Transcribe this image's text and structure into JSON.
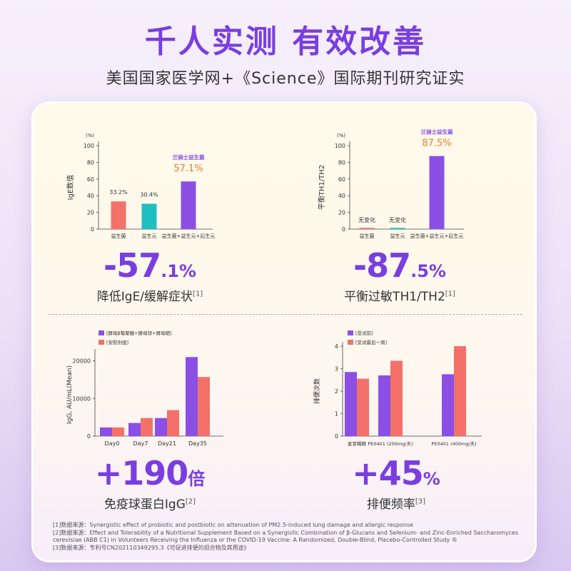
{
  "header": {
    "title": "千人实测 有效改善",
    "subtitle": "美国国家医学网+《Science》国际期刊研究证实"
  },
  "colors": {
    "purple": "#8b4fe6",
    "salmon": "#f47169",
    "teal": "#1fbfbf",
    "orange": "#f47a2a",
    "title_purple": "#7a3ee0"
  },
  "stats": [
    {
      "big": "-57",
      "small": ".1%",
      "caption": "降低IgE/缓解症状",
      "ref": "[1]"
    },
    {
      "big": "-87",
      "small": ".5%",
      "caption": "平衡过敏TH1/TH2",
      "ref": "[1]"
    },
    {
      "big": "+190",
      "small": "倍",
      "caption": "免疫球蛋白IgG",
      "ref": "[2]"
    },
    {
      "big": "+45",
      "small": "%",
      "caption": "排便频率",
      "ref": "[3]"
    }
  ],
  "chart_data": [
    {
      "type": "bar",
      "title": "",
      "ylabel": "IgE数值",
      "unit_label": "(%)",
      "ylim": [
        0,
        100
      ],
      "yticks": [
        0,
        20,
        40,
        60,
        80,
        100
      ],
      "categories": [
        "益生菌",
        "益生元",
        "益生菌+益生元+后生元"
      ],
      "values": [
        33.2,
        30.4,
        57.1
      ],
      "data_labels": [
        "33.2%",
        "30.4%",
        "57.1%"
      ],
      "annotation": "兰骑士益生菌",
      "bar_colors": [
        "#f47169",
        "#1fbfbf",
        "#8b4fe6"
      ]
    },
    {
      "type": "bar",
      "title": "",
      "ylabel": "平衡TH1/TH2",
      "unit_label": "(%)",
      "ylim": [
        0,
        100
      ],
      "yticks": [
        0,
        20,
        40,
        60,
        80,
        100
      ],
      "categories": [
        "益生菌",
        "益生元",
        "益生菌+益生元+后生元"
      ],
      "values": [
        1.5,
        1.5,
        87.5
      ],
      "data_labels": [
        "无变化",
        "无变化",
        "87.5%"
      ],
      "annotation": "兰骑士益生菌",
      "bar_colors": [
        "#f47169",
        "#1fbfbf",
        "#8b4fe6"
      ]
    },
    {
      "type": "bar",
      "title": "",
      "ylabel": "IgG, AU/mL(Mean)",
      "ylim": [
        0,
        22000
      ],
      "yticks": [
        0,
        10000,
        20000
      ],
      "categories": [
        "Day0",
        "Day7",
        "Day21",
        "Day35"
      ],
      "series": [
        {
          "name": "[酵母β葡聚糖+酵母锌+酵母硒]",
          "values": [
            2300,
            3500,
            4800,
            21000
          ],
          "color": "#8b4fe6"
        },
        {
          "name": "[安慰剂组]",
          "values": [
            2300,
            4800,
            6900,
            15700
          ],
          "color": "#f47169"
        }
      ],
      "legend": "top-left"
    },
    {
      "type": "bar",
      "title": "",
      "ylabel": "排便次数",
      "ylim": [
        0,
        4
      ],
      "yticks": [
        0,
        1,
        2,
        3,
        4
      ],
      "categories": [
        "麦芽糊精",
        "PE0401 (200mg/天)",
        "PE0401 (400mg/天)"
      ],
      "series": [
        {
          "name": "[受试前]",
          "values": [
            2.85,
            2.7,
            2.75
          ],
          "color": "#8b4fe6"
        },
        {
          "name": "[受试最后一周]",
          "values": [
            2.55,
            3.35,
            4.0
          ],
          "color": "#f47169"
        }
      ],
      "legend": "top-left"
    }
  ],
  "footnotes": [
    "[1]数据来源：Synergistic effect of probiotic and postbiotic on attenuation of PM2.5-induced lung damage and allergic response",
    "[2]数据来源：Effect and Tolerability of a Nutritional Supplement Based on a Synergistic Combination of β-Glucans and Selenium- and Zinc-Enriched Saccharomyces cerevisiae (ABB C1) in Volunteers Receiving the Influenza or the COVID-19 Vaccine: A Randomized, Double-Blind, Placebo-Controlled Study ®",
    "[3]数据来源：专利号CN202110349295.3《可促进排便的组合物及其用途》"
  ]
}
